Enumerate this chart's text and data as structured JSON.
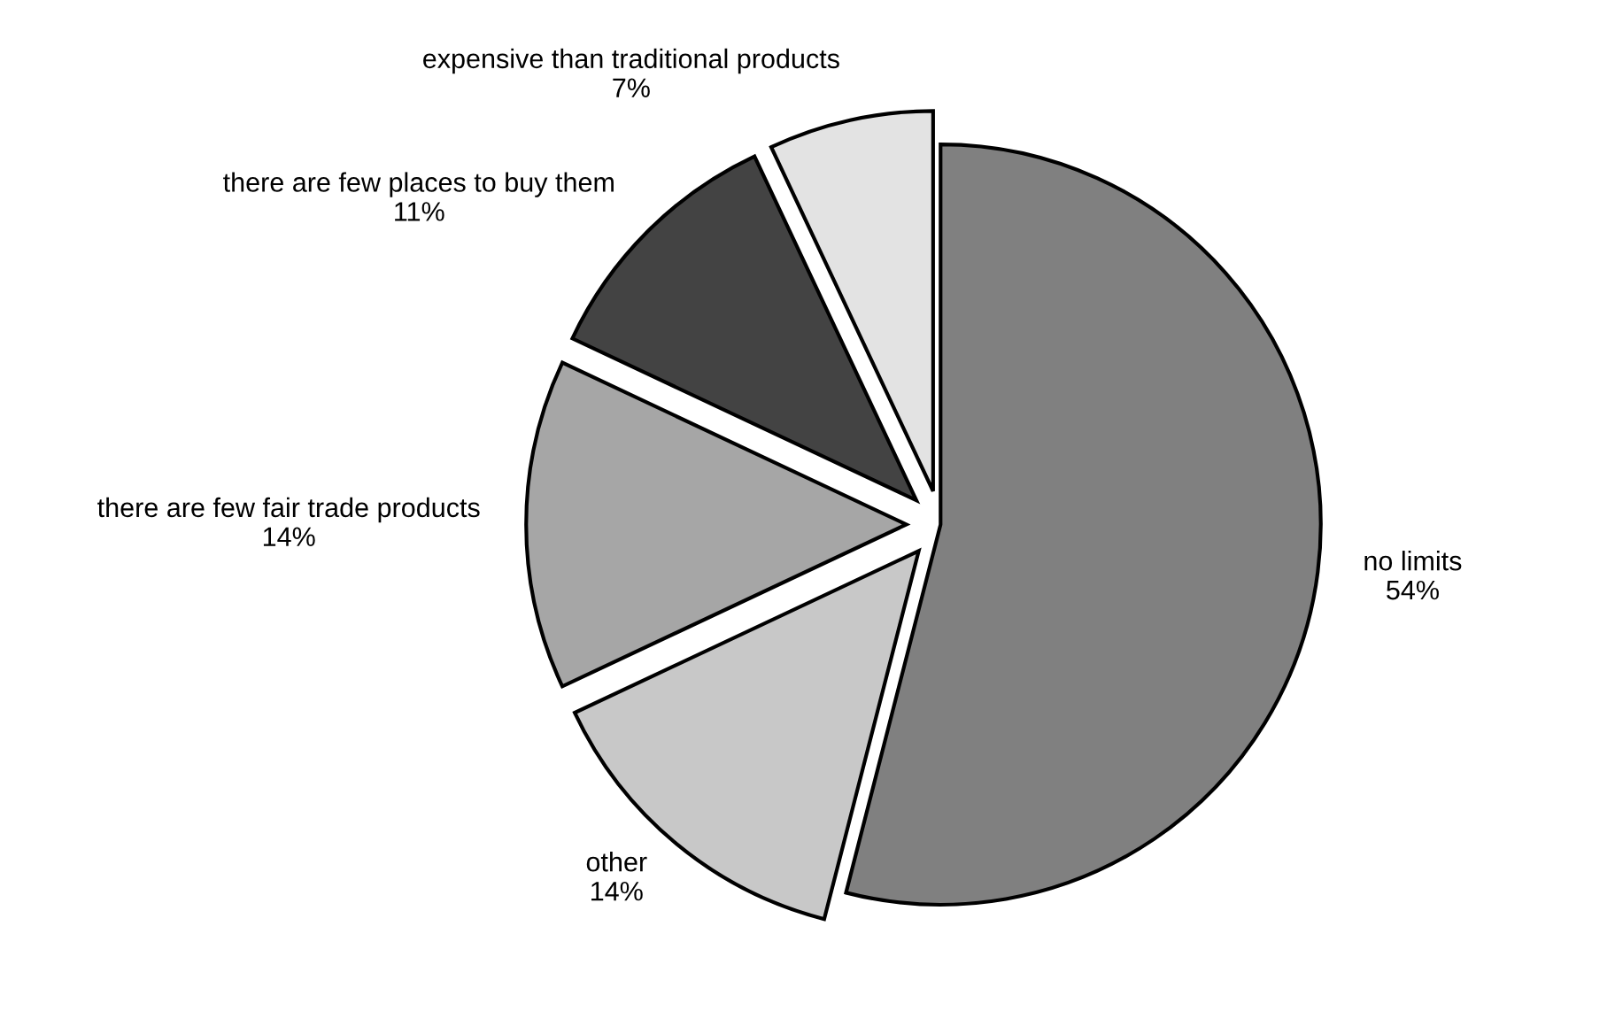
{
  "chart_data": {
    "type": "pie",
    "categories": [
      "no limits",
      "other",
      "there are few fair trade products",
      "there are few places to buy them",
      "expensive than traditional products"
    ],
    "values": [
      54,
      14,
      14,
      11,
      7
    ],
    "value_labels": [
      "54%",
      "14%",
      "14%",
      "11%",
      "7%"
    ],
    "colors": [
      "#808080",
      "#c8c8c8",
      "#a6a6a6",
      "#434343",
      "#e3e3e3"
    ]
  }
}
